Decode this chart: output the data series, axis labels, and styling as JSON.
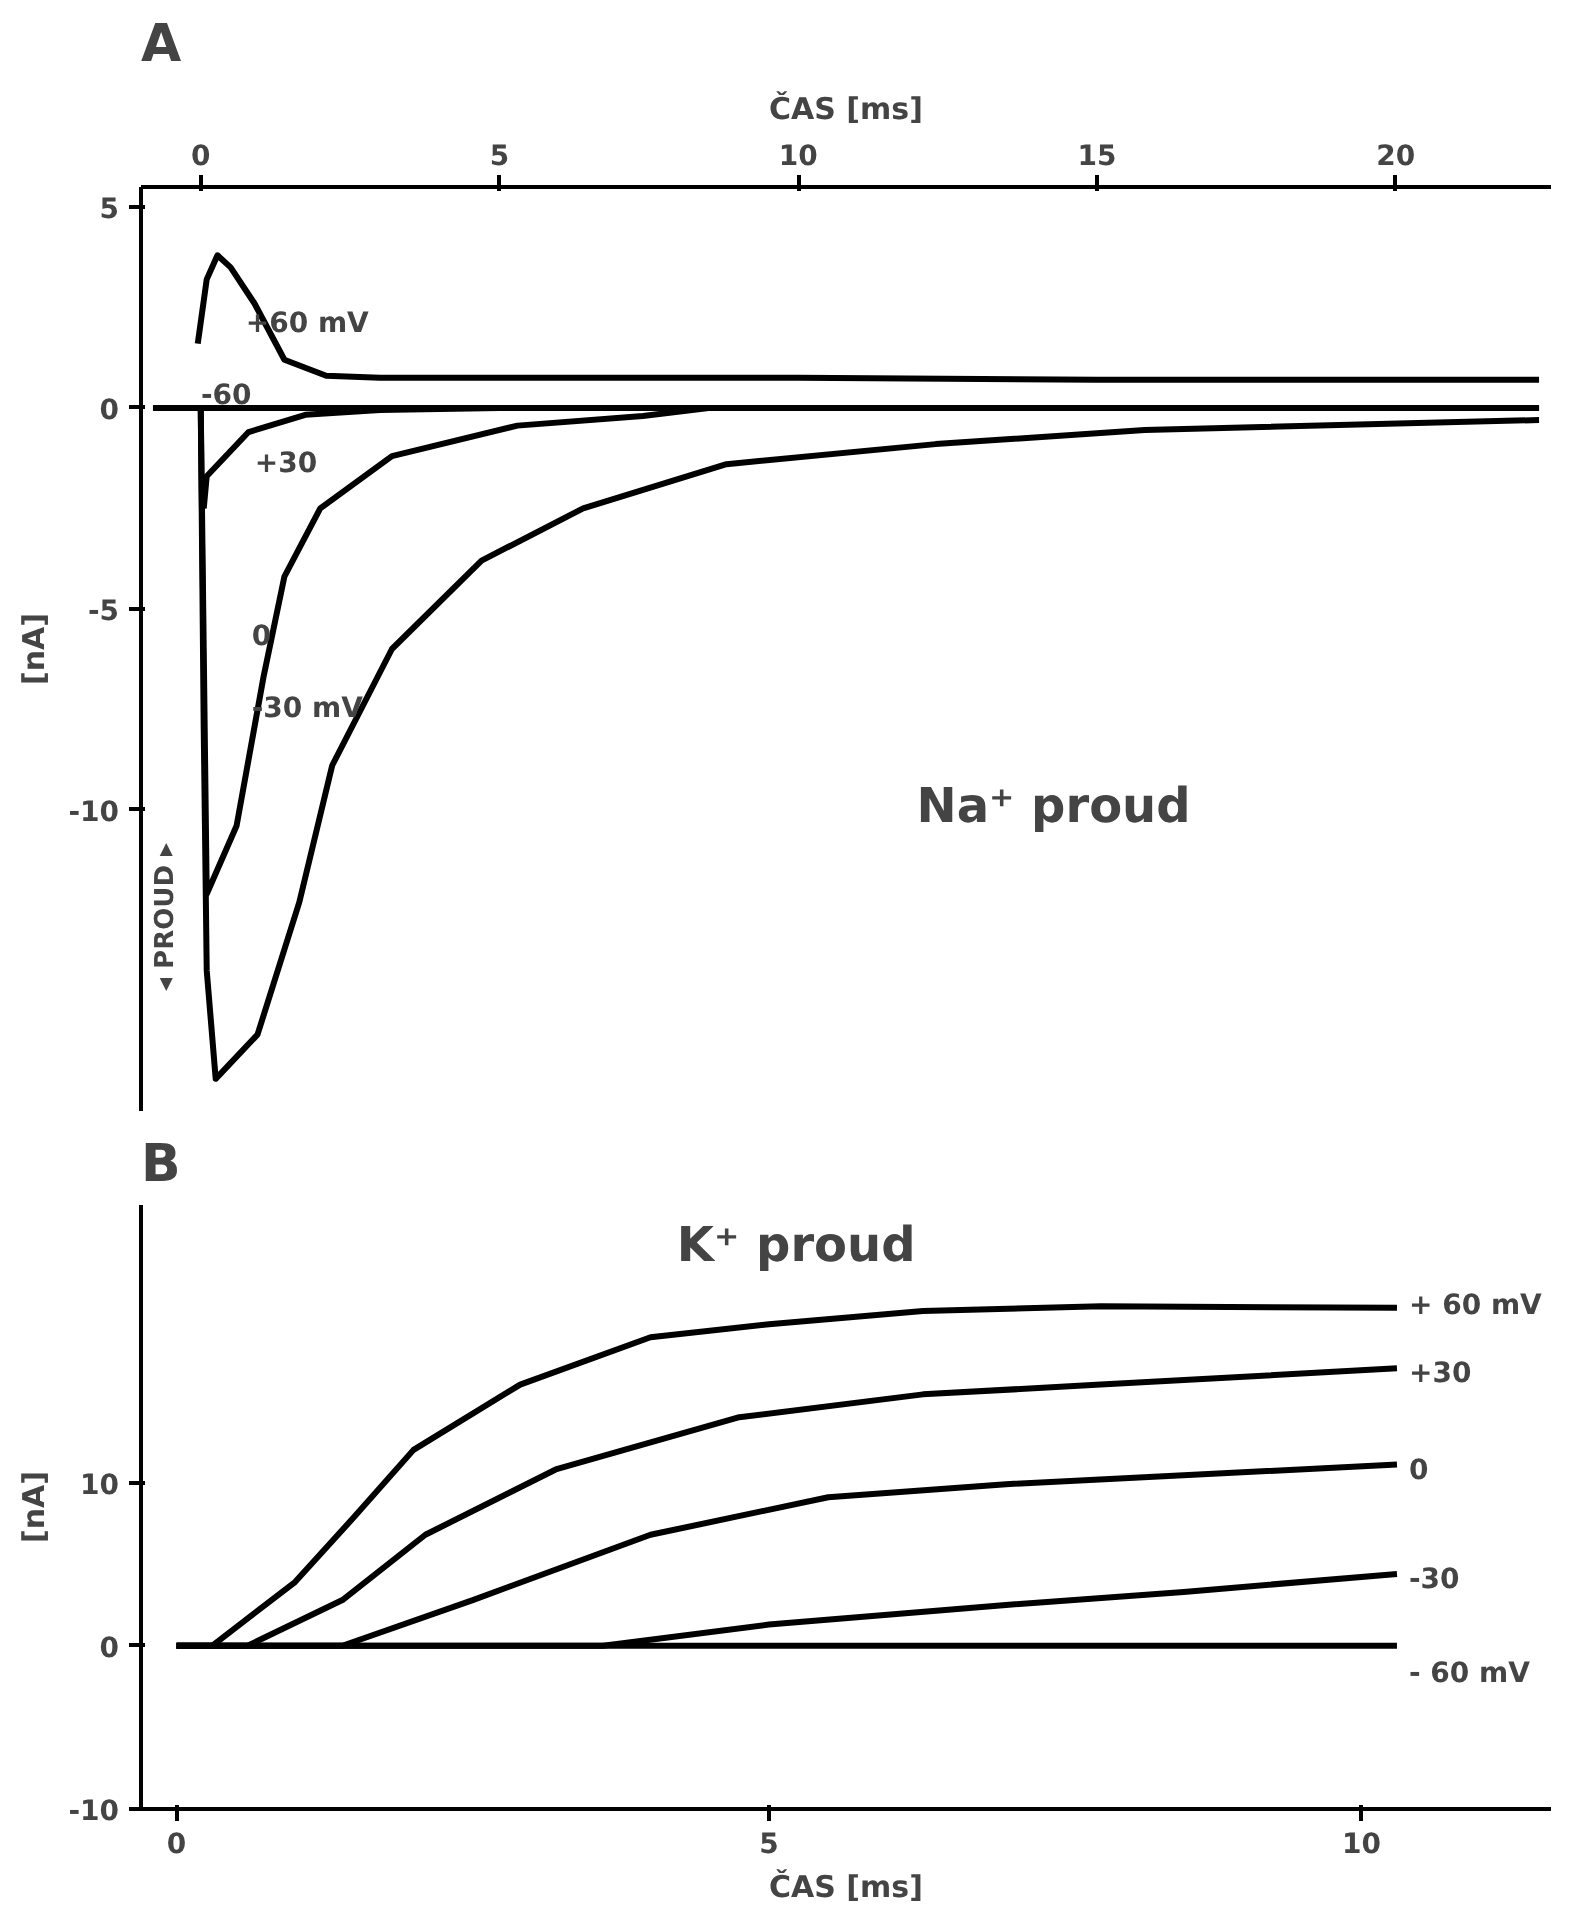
{
  "chart_data": [
    {
      "type": "line",
      "title": "A",
      "xlabel": "ČAS [ms]",
      "ylabel": "[nA]",
      "xlim": [
        -1,
        22.6
      ],
      "xticks": [
        0,
        5,
        10,
        15,
        20
      ],
      "ylim": [
        -17.5,
        5.5
      ],
      "yticks": [
        5,
        0,
        -5,
        -10
      ],
      "annotations": [
        "Na⁺ proud",
        "◂ PROUD ▸"
      ],
      "series": [
        {
          "name": "+60 mV",
          "color": "#000000",
          "x": [
            -0.05,
            0.1,
            0.28,
            0.5,
            0.9,
            1.4,
            2.1,
            3,
            5,
            10,
            15,
            20,
            22.4
          ],
          "values": [
            1.6,
            3.2,
            3.8,
            3.5,
            2.6,
            1.2,
            0.8,
            0.75,
            0.75,
            0.75,
            0.7,
            0.7,
            0.7
          ]
        },
        {
          "name": "-60",
          "color": "#000000",
          "x": [
            -0.8,
            5,
            10,
            15,
            22.4
          ],
          "values": [
            0,
            0,
            0,
            0,
            0
          ]
        },
        {
          "name": "+30",
          "color": "#000000",
          "x": [
            0.05,
            0.1,
            0.8,
            1.75,
            3,
            5
          ],
          "values": [
            -2.5,
            -1.7,
            -0.6,
            -0.17,
            -0.05,
            0
          ]
        },
        {
          "name": "0",
          "color": "#000000",
          "x": [
            0.0,
            0.05,
            0.1,
            0.6,
            1.05,
            1.4,
            2.0,
            3.2,
            5.3,
            7.4,
            8.5,
            22.4
          ],
          "values": [
            0,
            -6,
            -12.1,
            -10.4,
            -6.7,
            -4.2,
            -2.5,
            -1.2,
            -0.44,
            -0.2,
            0,
            0
          ]
        },
        {
          "name": "-30 mV",
          "color": "#000000",
          "x": [
            0.0,
            0.05,
            0.1,
            0.25,
            0.95,
            1.65,
            2.2,
            3.2,
            4.7,
            6.4,
            8.8,
            12.3,
            15.8,
            22.4
          ],
          "values": [
            0,
            -8,
            -14,
            -16.7,
            -15.6,
            -12.3,
            -8.9,
            -6,
            -3.8,
            -2.5,
            -1.4,
            -0.9,
            -0.55,
            -0.3
          ]
        }
      ]
    },
    {
      "type": "line",
      "title": "B",
      "xlabel": "ČAS [ms]",
      "ylabel": "[nA]",
      "xlim": [
        -0.3,
        11.6
      ],
      "xticks": [
        0,
        5,
        10
      ],
      "ylim": [
        -10,
        27
      ],
      "yticks": [
        10,
        0,
        -10
      ],
      "annotations": [
        "K⁺ proud"
      ],
      "series": [
        {
          "name": "+ 60 mV",
          "color": "#000000",
          "x": [
            0,
            0.3,
            1.0,
            1.5,
            2.0,
            2.9,
            4,
            5,
            6.3,
            7.8,
            10.3
          ],
          "values": [
            0,
            0,
            3.9,
            7.9,
            12,
            16,
            18.9,
            19.7,
            20.5,
            20.8,
            20.7
          ]
        },
        {
          "name": "+30",
          "color": "#000000",
          "x": [
            0,
            0.6,
            1.4,
            2.1,
            3.2,
            4.75,
            6.3,
            7.8,
            10.3
          ],
          "values": [
            0,
            0,
            2.8,
            6.8,
            10.8,
            14,
            15.4,
            16,
            17
          ]
        },
        {
          "name": "0",
          "color": "#000000",
          "x": [
            0,
            1.4,
            2.5,
            4,
            5.5,
            7,
            10.3
          ],
          "values": [
            0,
            0,
            2.8,
            6.8,
            9.1,
            9.9,
            11.1
          ]
        },
        {
          "name": "-30",
          "color": "#000000",
          "x": [
            0,
            3.6,
            5,
            7,
            8.5,
            10.3
          ],
          "values": [
            0,
            0,
            1.3,
            2.5,
            3.3,
            4.4
          ]
        },
        {
          "name": "- 60 mV",
          "color": "#000000",
          "x": [
            0,
            5,
            10.3
          ],
          "values": [
            0,
            0,
            0
          ]
        }
      ]
    }
  ]
}
